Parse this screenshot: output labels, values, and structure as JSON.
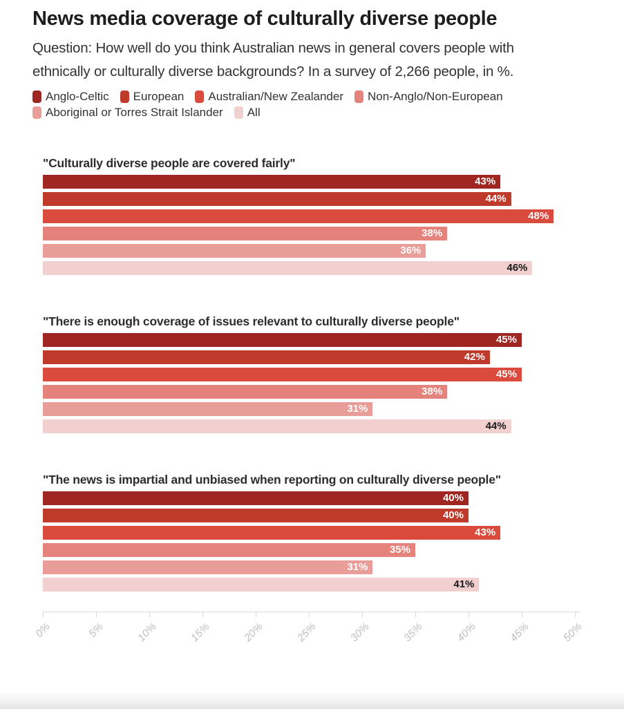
{
  "header": {
    "title": "News media coverage of culturally diverse people",
    "subtitle": "Question: How well do you think Australian news in general covers people with ethnically or culturally diverse backgrounds? In a survey of 2,266 people, in %."
  },
  "legend": {
    "items": [
      {
        "label": "Anglo-Celtic",
        "color": "#a02622"
      },
      {
        "label": "European",
        "color": "#c03a2b"
      },
      {
        "label": "Australian/New Zealander",
        "color": "#da4b3d"
      },
      {
        "label": "Non-Anglo/Non-European",
        "color": "#e4837c"
      },
      {
        "label": "Aboriginal or Torres Strait Islander",
        "color": "#e99d98"
      },
      {
        "label": "All",
        "color": "#f1d0cf"
      }
    ]
  },
  "chart_data": {
    "type": "bar",
    "orientation": "horizontal",
    "title": "News media coverage of culturally diverse people",
    "subtitle": "Question: How well do you think Australian news in general covers people with ethnically or culturally diverse backgrounds? In a survey of 2,266 people, in %.",
    "unit": "%",
    "xlim": [
      0,
      50
    ],
    "x_ticks": [
      "0%",
      "5%",
      "10%",
      "15%",
      "20%",
      "25%",
      "30%",
      "35%",
      "40%",
      "45%",
      "50%"
    ],
    "grid": "off",
    "legend_position": "top",
    "categories": [
      "Anglo-Celtic",
      "European",
      "Australian/New Zealander",
      "Non-Anglo/Non-European",
      "Aboriginal or Torres Strait Islander",
      "All"
    ],
    "colors": [
      "#a02622",
      "#c03a2b",
      "#da4b3d",
      "#e4837c",
      "#e99d98",
      "#f1d0cf"
    ],
    "value_label_colors": [
      "#ffffff",
      "#ffffff",
      "#ffffff",
      "#ffffff",
      "#ffffff",
      "#1a1a1a"
    ],
    "groups": [
      {
        "statement": "\"Culturally diverse people are covered fairly\"",
        "values": [
          43,
          44,
          48,
          38,
          36,
          46
        ]
      },
      {
        "statement": "\"There is enough coverage of issues relevant to culturally diverse people\"",
        "values": [
          45,
          42,
          45,
          38,
          31,
          44
        ]
      },
      {
        "statement": "\"The news is impartial and unbiased when reporting on culturally diverse people\"",
        "values": [
          40,
          40,
          43,
          35,
          31,
          41
        ]
      }
    ]
  }
}
